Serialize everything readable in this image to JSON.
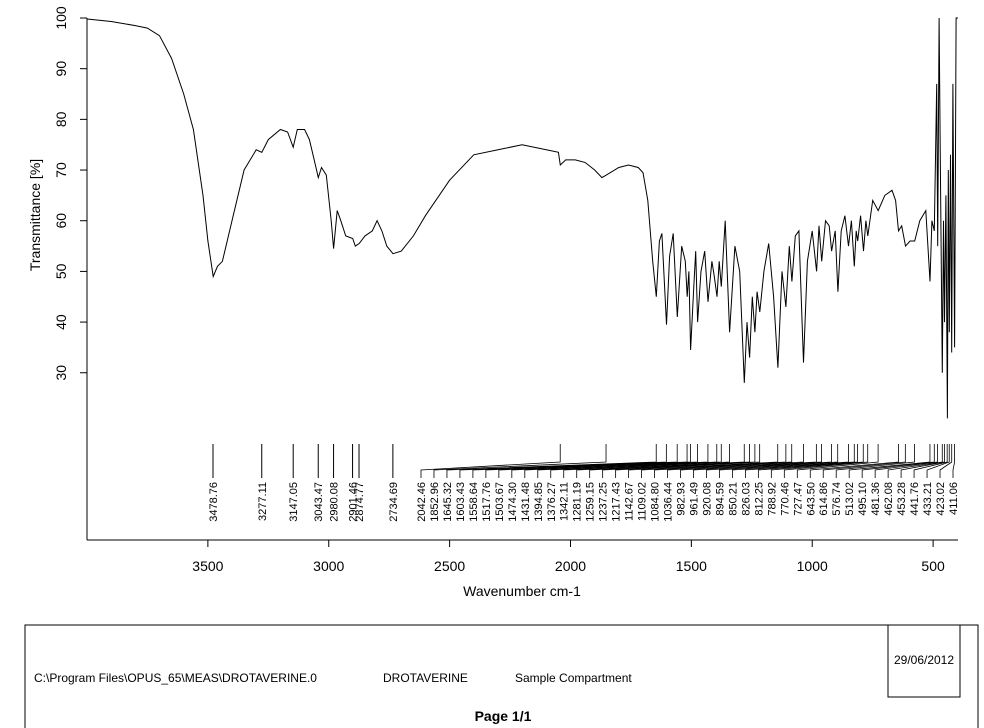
{
  "chart_data": {
    "type": "line",
    "x_label": "Wavenumber cm-1",
    "y_label": "Transmittance [%]",
    "xlim": [
      4000,
      397
    ],
    "ylim": [
      -3,
      100
    ],
    "xticks": [
      3500,
      3000,
      2500,
      2000,
      1500,
      1000,
      500
    ],
    "yticks": [
      30,
      40,
      50,
      60,
      70,
      80,
      90,
      100
    ],
    "series": [
      {
        "name": "DROTAVERINE",
        "color": "#000000",
        "x": [
          4000,
          3900,
          3800,
          3750,
          3700,
          3650,
          3600,
          3560,
          3520,
          3500,
          3478,
          3460,
          3440,
          3400,
          3350,
          3300,
          3277,
          3250,
          3200,
          3170,
          3147,
          3130,
          3100,
          3080,
          3060,
          3043,
          3030,
          3010,
          2990,
          2980,
          2965,
          2950,
          2930,
          2901,
          2890,
          2874,
          2850,
          2820,
          2800,
          2780,
          2760,
          2734,
          2700,
          2650,
          2600,
          2500,
          2400,
          2300,
          2200,
          2100,
          2050,
          2042,
          2020,
          1980,
          1940,
          1900,
          1870,
          1852,
          1800,
          1760,
          1720,
          1700,
          1680,
          1660,
          1645,
          1632,
          1622,
          1603,
          1590,
          1575,
          1558,
          1540,
          1525,
          1517,
          1510,
          1503,
          1490,
          1482,
          1474,
          1460,
          1445,
          1431,
          1415,
          1405,
          1394,
          1385,
          1376,
          1360,
          1342,
          1320,
          1300,
          1281,
          1270,
          1259,
          1248,
          1237,
          1228,
          1217,
          1200,
          1180,
          1160,
          1142,
          1125,
          1109,
          1095,
          1084,
          1070,
          1055,
          1036,
          1020,
          1000,
          982,
          972,
          961,
          945,
          930,
          920,
          905,
          894,
          880,
          865,
          850,
          838,
          826,
          818,
          812,
          800,
          788,
          778,
          770,
          750,
          727,
          700,
          670,
          655,
          643,
          630,
          614,
          595,
          576,
          555,
          530,
          513,
          505,
          495,
          485,
          481,
          475,
          470,
          462,
          457,
          453,
          447,
          441,
          437,
          433,
          428,
          423,
          418,
          411,
          405,
          397
        ],
        "values": [
          99.8,
          99.3,
          98.5,
          98,
          96.5,
          92,
          85,
          78,
          65,
          56,
          49,
          51,
          52,
          60,
          70,
          74,
          73.5,
          76,
          78,
          77.5,
          74.5,
          78,
          78,
          76,
          72,
          68.5,
          70.5,
          69,
          60,
          54.5,
          62,
          60,
          57,
          56.5,
          55,
          55.5,
          57,
          58,
          60,
          58,
          55,
          53.5,
          54,
          57,
          61,
          68,
          73,
          74,
          75,
          74,
          73.5,
          71,
          72,
          72,
          71.5,
          70,
          68.5,
          69,
          70.5,
          71,
          70.5,
          69.5,
          64,
          52,
          45,
          56,
          57.5,
          39.5,
          53,
          57.5,
          41,
          55,
          52,
          45,
          50,
          34.5,
          47,
          54,
          40,
          50,
          54,
          44,
          52,
          49,
          45,
          52,
          47,
          60,
          38,
          55,
          50,
          28,
          40,
          33,
          45,
          38,
          46,
          42,
          50,
          55.5,
          45,
          31,
          50,
          43,
          55,
          48,
          57,
          58,
          32,
          52,
          58,
          50,
          59,
          52,
          60,
          59,
          54,
          58,
          46,
          58,
          61,
          55,
          60,
          51,
          58,
          56,
          61,
          54,
          60,
          57,
          64,
          62,
          65,
          66,
          64,
          58,
          59,
          55,
          56,
          56,
          60,
          62,
          48,
          60,
          58,
          87,
          55,
          100,
          70,
          30,
          60,
          40,
          65,
          21,
          70,
          38,
          73,
          34,
          87,
          35,
          100,
          100
        ]
      }
    ],
    "peaks": [
      3478.76,
      3277.11,
      3147.05,
      3043.47,
      2980.08,
      2901.46,
      2874.77,
      2734.69,
      2042.46,
      1852.96,
      1645.32,
      1603.43,
      1558.64,
      1517.76,
      1503.67,
      {
        "value": 1474.3,
        "label": "1474.30"
      },
      1431.48,
      1394.85,
      1376.27,
      1342.11,
      1281.19,
      1259.15,
      1237.25,
      1217.43,
      1142.67,
      1109.02,
      {
        "value": 1084.8,
        "label": "1084.80"
      },
      1036.44,
      982.93,
      961.49,
      920.08,
      894.59,
      850.21,
      826.03,
      812.25,
      788.92,
      770.46,
      727.47,
      {
        "value": 643.5,
        "label": "643.50"
      },
      614.86,
      576.74,
      513.02,
      {
        "value": 495.1,
        "label": "495.10"
      },
      481.36,
      462.08,
      453.28,
      441.76,
      433.21,
      423.02,
      411.06
    ]
  },
  "footer": {
    "path": "C:\\Program Files\\OPUS_65\\MEAS\\DROTAVERINE.0",
    "sample": "DROTAVERINE",
    "compartment": "Sample Compartment",
    "date": "29/06/2012",
    "page": "Page 1/1"
  }
}
